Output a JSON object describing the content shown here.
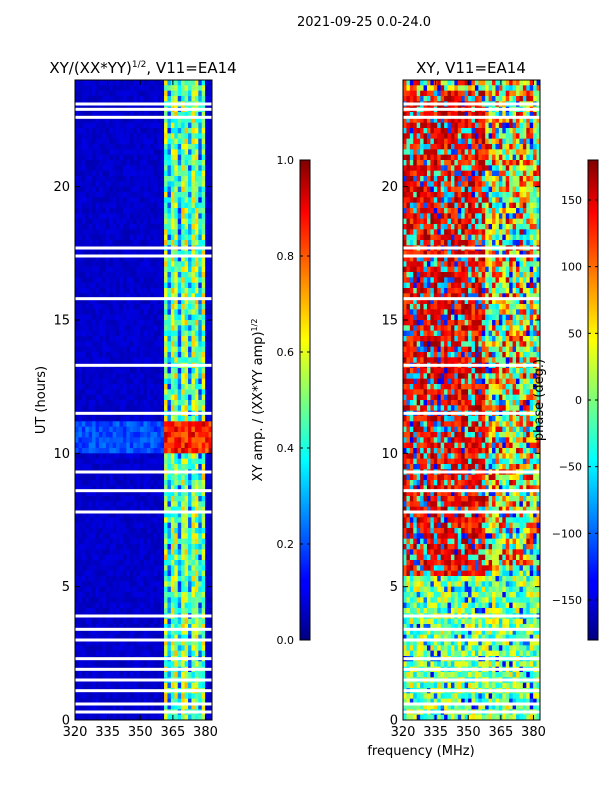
{
  "figure": {
    "suptitle": "2021-09-25 0.0-24.0",
    "xlabel": "frequency (MHz)"
  },
  "chart_data": [
    {
      "type": "heatmap",
      "title_main": "XY/(XX*YY)",
      "title_exp": "1/2",
      "title_rest": ", V11=EA14",
      "xlabel": "frequency (MHz)",
      "ylabel": "UT (hours)",
      "xlim": [
        320,
        383
      ],
      "ylim": [
        0,
        24
      ],
      "xticks": [
        "320",
        "335",
        "350",
        "365",
        "380"
      ],
      "yticks": [
        "0",
        "5",
        "10",
        "15",
        "20"
      ],
      "colorbar": {
        "label_main": "XY amp. / (XX*YY amp)",
        "label_exp": "1/2",
        "range": [
          0.0,
          1.0
        ],
        "ticks": [
          "0.0",
          "0.2",
          "0.4",
          "0.6",
          "0.8",
          "1.0"
        ]
      },
      "features": {
        "background_level": 0.05,
        "bright_band_mhz": [
          361,
          380
        ],
        "bright_band_level": 0.35,
        "hot_rows_hours": [
          10.0,
          11.2
        ],
        "hot_rows_level": 0.75,
        "flagged_hours": [
          0.3,
          0.6,
          1.1,
          1.5,
          1.9,
          2.3,
          3.0,
          3.4,
          3.9,
          7.8,
          8.6,
          9.3,
          11.5,
          13.3,
          15.8,
          17.4,
          17.7,
          22.6,
          22.9,
          23.1
        ]
      }
    },
    {
      "type": "heatmap",
      "title_main": "XY, V11=EA14",
      "xlabel": "frequency (MHz)",
      "ylabel": "",
      "xlim": [
        320,
        383
      ],
      "ylim": [
        0,
        24
      ],
      "xticks": [
        "320",
        "335",
        "350",
        "365",
        "380"
      ],
      "yticks": [
        "0",
        "5",
        "10",
        "15",
        "20"
      ],
      "colorbar": {
        "label_main": "phase (deg.)",
        "range": [
          -180,
          180
        ],
        "ticks": [
          "-150",
          "-100",
          "-50",
          "0",
          "50",
          "100",
          "150"
        ]
      },
      "features": {
        "background_level": 0.0,
        "warm_region_hours": [
          5.5,
          23.5
        ],
        "warm_region_mhz": [
          320,
          358
        ],
        "flagged_hours": [
          0.3,
          0.6,
          1.1,
          1.5,
          1.9,
          2.3,
          3.0,
          3.4,
          3.9,
          7.8,
          8.6,
          9.3,
          11.5,
          13.3,
          15.8,
          17.4,
          17.7,
          22.6,
          22.9,
          23.1
        ]
      }
    }
  ]
}
